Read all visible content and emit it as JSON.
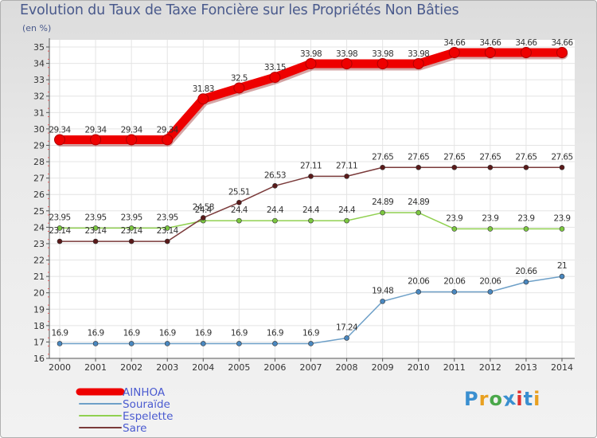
{
  "title": "Evolution du Taux de Taxe Foncière sur les Propriétés Non Bâties",
  "unit": "(en %)",
  "brand": {
    "text": "Proxiti",
    "letter_colors": [
      "#3a8fd0",
      "#e8a020",
      "#4aa84a",
      "#3a8fd0",
      "#e03030",
      "#3a8fd0",
      "#e8a020"
    ]
  },
  "chart_data": {
    "type": "line",
    "title": "Evolution du Taux de Taxe Foncière sur les Propriétés Non Bâties",
    "ylabel": "(en %)",
    "xlabel": "",
    "x": [
      "2000",
      "2001",
      "2002",
      "2003",
      "2004",
      "2005",
      "2006",
      "2007",
      "2008",
      "2009",
      "2010",
      "2011",
      "2012",
      "2013",
      "2014"
    ],
    "yticks": [
      "16",
      "17",
      "18",
      "19",
      "20",
      "21",
      "22",
      "23",
      "24",
      "25",
      "26",
      "27",
      "28",
      "29",
      "30",
      "31",
      "32",
      "33",
      "34",
      "35"
    ],
    "ylim": [
      16,
      35
    ],
    "grid": true,
    "series": [
      {
        "name": "AINHOA",
        "color": "#ee0000",
        "dot_color": "#ee0000",
        "emphasis": "thick",
        "values": [
          29.34,
          29.34,
          29.34,
          29.34,
          31.83,
          32.5,
          33.15,
          33.98,
          33.98,
          33.98,
          33.98,
          34.66,
          34.66,
          34.66,
          34.66
        ],
        "labels": [
          "29.34",
          "29.34",
          "29.34",
          "29.34",
          "31.83",
          "32.5",
          "33.15",
          "33.98",
          "33.98",
          "33.98",
          "33.98",
          "34.66",
          "34.66",
          "34.66",
          "34.66"
        ]
      },
      {
        "name": "Souraïde",
        "color": "#6ea0c8",
        "dot_color": "#4a88c0",
        "emphasis": "normal",
        "values": [
          16.9,
          16.9,
          16.9,
          16.9,
          16.9,
          16.9,
          16.9,
          16.9,
          17.24,
          19.48,
          20.06,
          20.06,
          20.06,
          20.66,
          21
        ],
        "labels": [
          "16.9",
          "16.9",
          "16.9",
          "16.9",
          "16.9",
          "16.9",
          "16.9",
          "16.9",
          "17.24",
          "19.48",
          "20.06",
          "20.06",
          "20.06",
          "20.66",
          "21"
        ]
      },
      {
        "name": "Espelette",
        "color": "#90d050",
        "dot_color": "#7cc840",
        "emphasis": "normal",
        "values": [
          23.95,
          23.95,
          23.95,
          23.95,
          24.4,
          24.4,
          24.4,
          24.4,
          24.4,
          24.89,
          24.89,
          23.9,
          23.9,
          23.9,
          23.9
        ],
        "labels": [
          "23.95",
          "23.95",
          "23.95",
          "23.95",
          "24.4",
          "24.4",
          "24.4",
          "24.4",
          "24.4",
          "24.89",
          "24.89",
          "23.9",
          "23.9",
          "23.9",
          "23.9"
        ]
      },
      {
        "name": "Sare",
        "color": "#7a3a3a",
        "dot_color": "#5a1a1a",
        "emphasis": "normal",
        "values": [
          23.14,
          23.14,
          23.14,
          23.14,
          24.58,
          25.51,
          26.53,
          27.11,
          27.11,
          27.65,
          27.65,
          27.65,
          27.65,
          27.65,
          27.65
        ],
        "labels": [
          "23.14",
          "23.14",
          "23.14",
          "23.14",
          "24.58",
          "25.51",
          "26.53",
          "27.11",
          "27.11",
          "27.65",
          "27.65",
          "27.65",
          "27.65",
          "27.65",
          "27.65"
        ]
      }
    ],
    "legend": {
      "position": "bottom-left",
      "text_color": "#4a5ad0"
    }
  }
}
